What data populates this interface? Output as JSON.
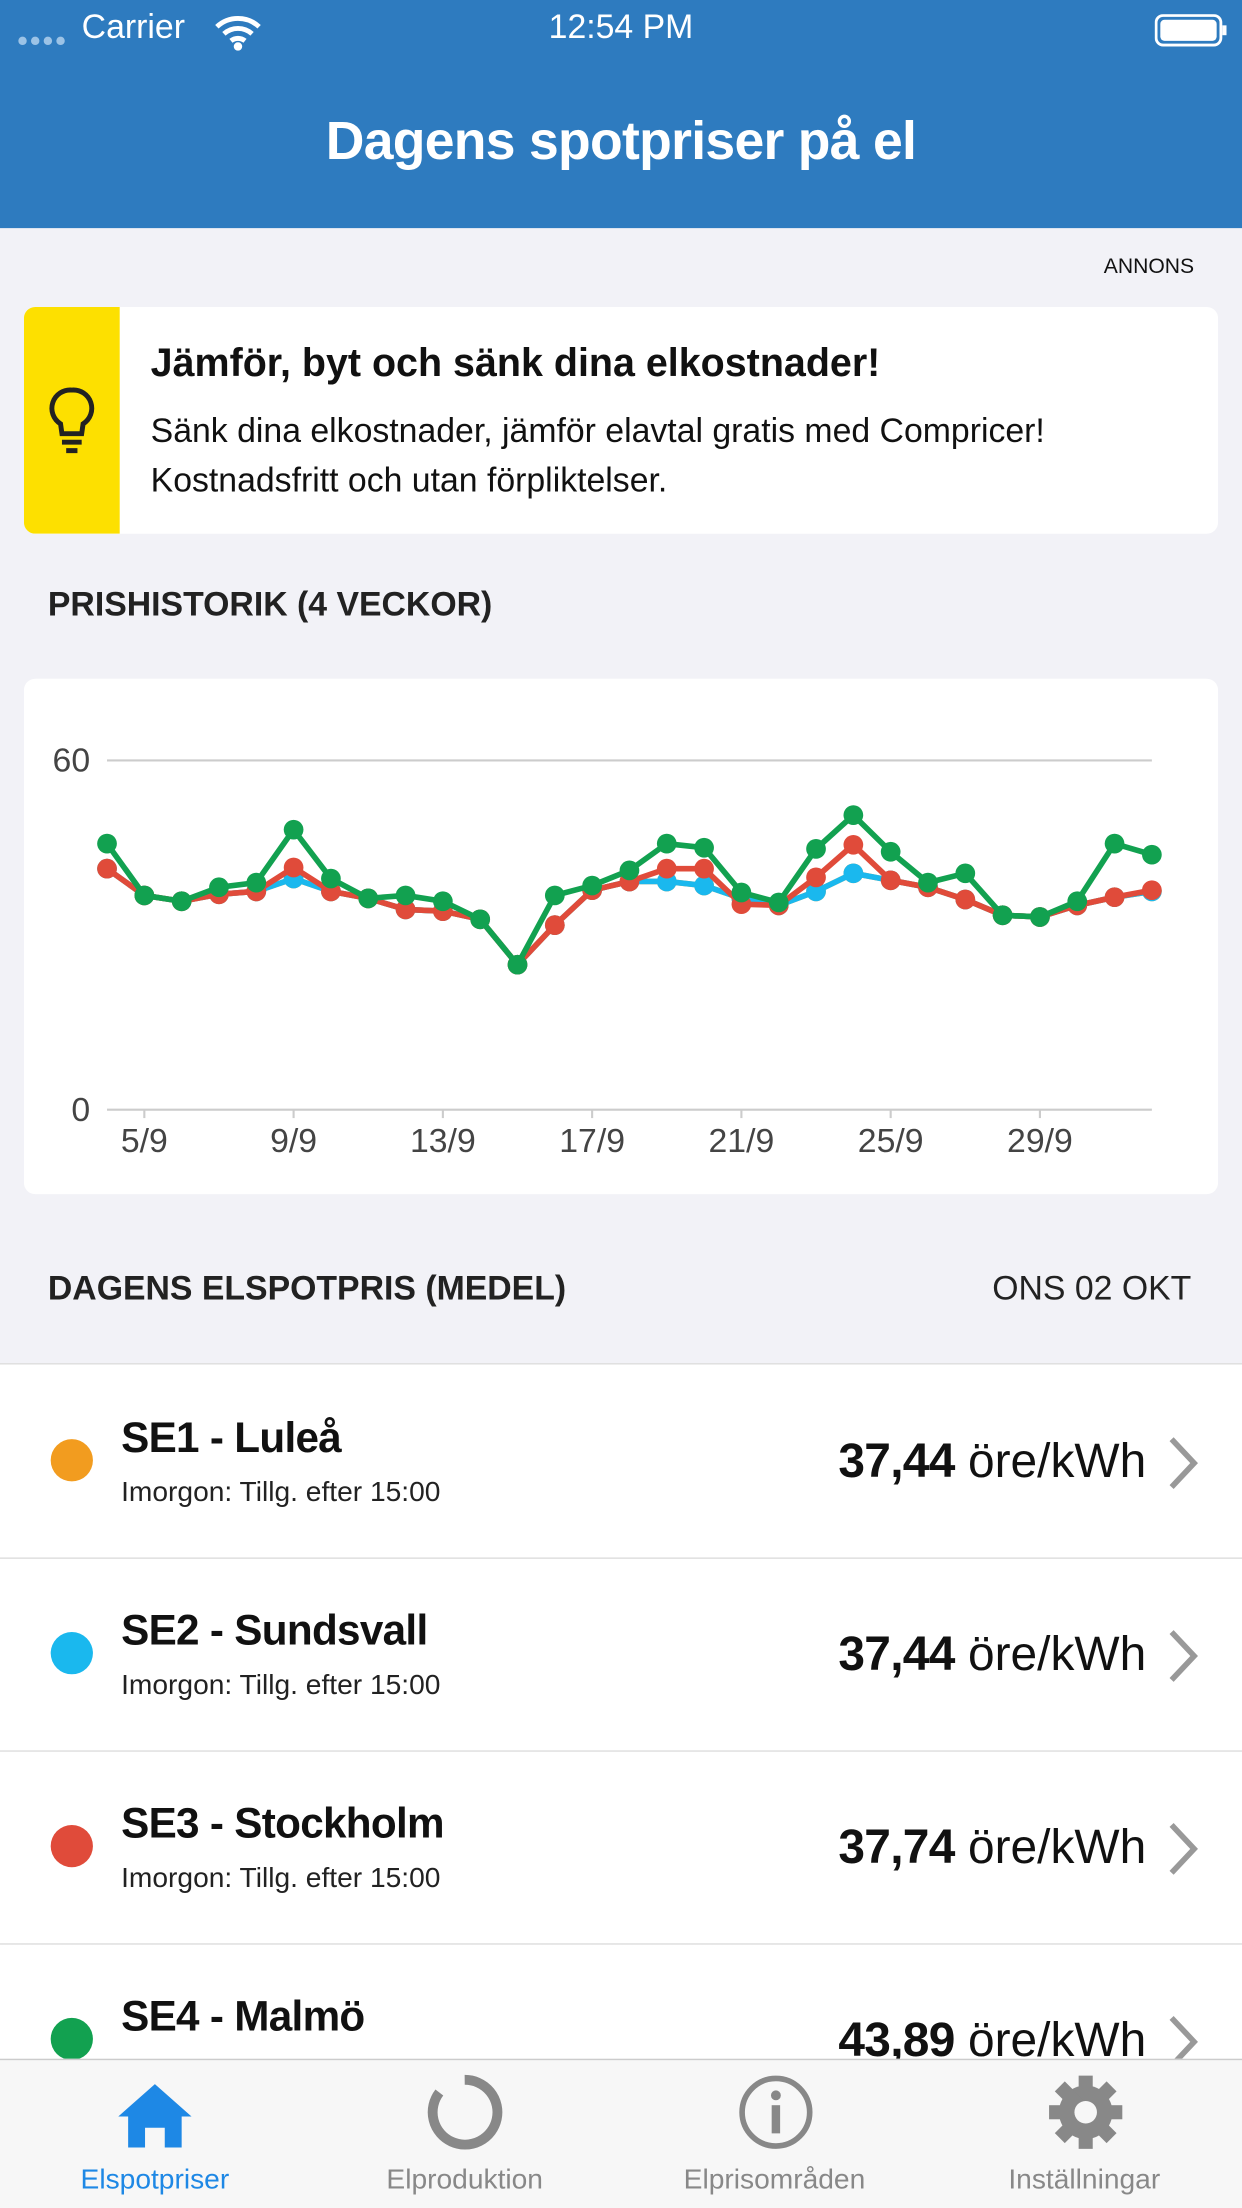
{
  "status_bar": {
    "carrier": "Carrier",
    "time": "12:54 PM"
  },
  "header": {
    "title": "Dagens spotpriser på el"
  },
  "ad": {
    "label": "ANNONS",
    "title": "Jämför, byt och sänk dina elkostnader!",
    "text": "Sänk dina elkostnader, jämför elavtal gratis med Compricer! Kostnadsfritt och utan förpliktelser."
  },
  "chart_section": {
    "heading": "PRISHISTORIK (4 VECKOR)"
  },
  "chart_data": {
    "type": "line",
    "categories": [
      null,
      "5/9",
      null,
      null,
      null,
      "9/9",
      null,
      null,
      null,
      "13/9",
      null,
      null,
      null,
      "17/9",
      null,
      null,
      null,
      "21/9",
      null,
      null,
      null,
      "25/9",
      null,
      null,
      null,
      "29/9",
      null,
      null,
      null
    ],
    "ylim": [
      0,
      60
    ],
    "yticks": [
      0,
      60
    ],
    "grid": true,
    "series": [
      {
        "color": "#f29c1f",
        "values": [
          41.4,
          36.8,
          35.8,
          37.0,
          37.5,
          39.7,
          37.5,
          36.3,
          34.4,
          34.1,
          32.7,
          24.9,
          31.7,
          37.7,
          39.2,
          39.2,
          38.5,
          36.3,
          35.1,
          37.5,
          40.6,
          39.4,
          38.2,
          36.1,
          33.4,
          33.1,
          35.1,
          36.5,
          37.5
        ]
      },
      {
        "color": "#1ab8ee",
        "values": [
          41.4,
          36.8,
          35.8,
          37.0,
          37.5,
          39.7,
          37.5,
          36.3,
          34.4,
          34.1,
          32.7,
          24.9,
          31.7,
          37.7,
          39.2,
          39.2,
          38.5,
          36.3,
          35.1,
          37.5,
          40.6,
          39.4,
          38.2,
          36.1,
          33.4,
          33.1,
          35.1,
          36.5,
          37.5
        ]
      },
      {
        "color": "#e04b3a",
        "values": [
          41.4,
          36.8,
          35.8,
          37.0,
          37.5,
          41.6,
          37.5,
          36.3,
          34.4,
          34.1,
          32.7,
          24.9,
          31.7,
          37.7,
          39.2,
          41.4,
          41.4,
          35.3,
          35.1,
          39.9,
          45.5,
          39.4,
          38.2,
          36.1,
          33.4,
          33.1,
          35.1,
          36.5,
          37.7
        ]
      },
      {
        "color": "#12a150",
        "values": [
          45.7,
          36.8,
          35.8,
          38.2,
          39.0,
          48.1,
          39.7,
          36.3,
          36.8,
          35.8,
          32.7,
          24.9,
          36.8,
          38.5,
          41.1,
          45.7,
          45.0,
          37.3,
          35.6,
          44.8,
          50.6,
          44.3,
          39.0,
          40.6,
          33.4,
          33.1,
          35.8,
          45.7,
          43.8
        ]
      }
    ]
  },
  "list": {
    "heading": "DAGENS ELSPOTPRIS (MEDEL)",
    "date": "ONS 02 OKT",
    "rows": [
      {
        "name": "SE1 - Luleå",
        "note": "Imorgon: Tillg. efter 15:00",
        "price": "37,44",
        "unit": "öre/kWh",
        "color": "#f29c1f"
      },
      {
        "name": "SE2 - Sundsvall",
        "note": "Imorgon: Tillg. efter 15:00",
        "price": "37,44",
        "unit": "öre/kWh",
        "color": "#1ab8ee"
      },
      {
        "name": "SE3 - Stockholm",
        "note": "Imorgon: Tillg. efter 15:00",
        "price": "37,74",
        "unit": "öre/kWh",
        "color": "#e04b3a"
      },
      {
        "name": "SE4 - Malmö",
        "price": "43,89",
        "unit": "öre/kWh",
        "color": "#12a150"
      }
    ]
  },
  "tab_bar": {
    "items": [
      "Elspotpriser",
      "Elproduktion",
      "Elprisområden",
      "Inställningar"
    ],
    "active": 0
  }
}
